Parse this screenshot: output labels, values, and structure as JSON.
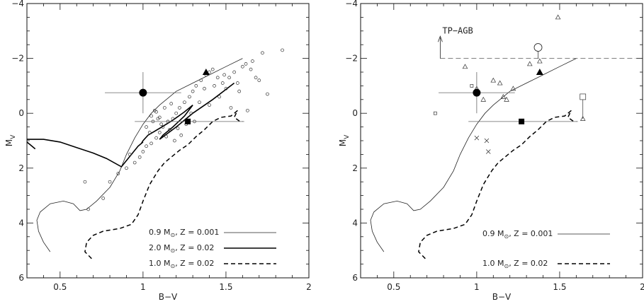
{
  "chart_data": [
    {
      "type": "scatter",
      "xlabel": "B−V",
      "ylabel": "M",
      "ylabel_sub": "V",
      "xlim": [
        0.3,
        2.0
      ],
      "ylim": [
        6,
        -4
      ],
      "xticks": [
        0.5,
        1,
        1.5,
        2
      ],
      "xtick_labels": [
        "0.5",
        "1",
        "1.5",
        "2"
      ],
      "yticks": [
        -4,
        -2,
        0,
        2,
        4,
        6
      ],
      "ytick_labels": [
        "−4",
        "−2",
        "0",
        "2",
        "4",
        "6"
      ],
      "grid": false,
      "legend_position": "bottom-right",
      "legend": [
        {
          "pre": "0.9 M",
          "sub": "⊙",
          "post": ", Z = 0.001",
          "style": "thin"
        },
        {
          "pre": "2.0 M",
          "sub": "⊙",
          "post": ", Z = 0.02",
          "style": "thick"
        },
        {
          "pre": "1.0 M",
          "sub": "⊙",
          "post": ", Z = 0.02",
          "style": "dashed"
        }
      ],
      "track_thin": [
        [
          0.44,
          5.05
        ],
        [
          0.4,
          4.7
        ],
        [
          0.37,
          4.3
        ],
        [
          0.36,
          3.9
        ],
        [
          0.38,
          3.6
        ],
        [
          0.44,
          3.3
        ],
        [
          0.52,
          3.2
        ],
        [
          0.58,
          3.3
        ],
        [
          0.62,
          3.55
        ],
        [
          0.66,
          3.5
        ],
        [
          0.72,
          3.2
        ],
        [
          0.8,
          2.7
        ],
        [
          0.86,
          2.1
        ],
        [
          0.9,
          1.5
        ],
        [
          0.95,
          0.9
        ],
        [
          1.0,
          0.4
        ],
        [
          1.05,
          0.0
        ],
        [
          1.1,
          -0.3
        ],
        [
          1.15,
          -0.55
        ],
        [
          1.2,
          -0.8
        ],
        [
          1.3,
          -1.1
        ],
        [
          1.4,
          -1.4
        ],
        [
          1.5,
          -1.7
        ],
        [
          1.6,
          -2.0
        ]
      ],
      "track_thick": [
        [
          0.3,
          0.95
        ],
        [
          0.4,
          0.95
        ],
        [
          0.5,
          1.05
        ],
        [
          0.6,
          1.25
        ],
        [
          0.7,
          1.45
        ],
        [
          0.78,
          1.65
        ],
        [
          0.87,
          1.95
        ],
        [
          0.91,
          1.65
        ],
        [
          0.97,
          1.2
        ],
        [
          1.0,
          1.05
        ],
        [
          0.99,
          1.1
        ],
        [
          1.0,
          1.0
        ],
        [
          1.03,
          0.8
        ],
        [
          1.1,
          0.55
        ],
        [
          1.18,
          0.25
        ],
        [
          1.25,
          -0.05
        ],
        [
          1.3,
          -0.3
        ],
        [
          1.25,
          0.1
        ],
        [
          1.18,
          0.5
        ],
        [
          1.12,
          0.8
        ],
        [
          1.1,
          0.95
        ],
        [
          1.2,
          0.5
        ],
        [
          1.3,
          0.0
        ],
        [
          1.42,
          -0.5
        ],
        [
          1.55,
          -1.1
        ]
      ],
      "track_hook": [
        [
          0.3,
          1.05
        ],
        [
          0.32,
          1.15
        ],
        [
          0.35,
          1.3
        ]
      ],
      "track_dashed": [
        [
          0.69,
          5.3
        ],
        [
          0.65,
          5.05
        ],
        [
          0.66,
          4.7
        ],
        [
          0.7,
          4.45
        ],
        [
          0.76,
          4.3
        ],
        [
          0.86,
          4.2
        ],
        [
          0.93,
          4.05
        ],
        [
          0.97,
          3.7
        ],
        [
          1.0,
          3.2
        ],
        [
          1.04,
          2.6
        ],
        [
          1.09,
          2.1
        ],
        [
          1.13,
          1.8
        ],
        [
          1.17,
          1.6
        ],
        [
          1.22,
          1.35
        ],
        [
          1.27,
          1.15
        ],
        [
          1.32,
          0.85
        ],
        [
          1.37,
          0.6
        ],
        [
          1.42,
          0.3
        ],
        [
          1.47,
          0.15
        ],
        [
          1.53,
          0.1
        ],
        [
          1.56,
          -0.05
        ],
        [
          1.57,
          -0.1
        ],
        [
          1.55,
          0.15
        ],
        [
          1.58,
          0.28
        ],
        [
          1.6,
          0.3
        ]
      ],
      "points_small_circles": [
        [
          0.65,
          2.5
        ],
        [
          0.67,
          3.5
        ],
        [
          0.76,
          3.1
        ],
        [
          0.8,
          2.5
        ],
        [
          0.85,
          2.2
        ],
        [
          0.9,
          2.0
        ],
        [
          0.92,
          1.5
        ],
        [
          0.95,
          1.8
        ],
        [
          0.98,
          1.6
        ],
        [
          1.0,
          1.4
        ],
        [
          1.02,
          1.2
        ],
        [
          1.05,
          1.1
        ],
        [
          1.08,
          0.9
        ],
        [
          1.1,
          0.7
        ],
        [
          1.12,
          0.5
        ],
        [
          1.15,
          0.3
        ],
        [
          1.18,
          0.2
        ],
        [
          1.2,
          0.0
        ],
        [
          1.22,
          -0.2
        ],
        [
          1.25,
          -0.4
        ],
        [
          1.28,
          -0.6
        ],
        [
          1.3,
          -0.8
        ],
        [
          1.32,
          -1.0
        ],
        [
          1.35,
          -1.2
        ],
        [
          1.38,
          -1.4
        ],
        [
          1.4,
          -1.5
        ],
        [
          1.42,
          -1.6
        ],
        [
          1.45,
          -1.3
        ],
        [
          1.48,
          -1.1
        ],
        [
          1.5,
          -0.9
        ],
        [
          1.52,
          -1.3
        ],
        [
          1.55,
          -1.5
        ],
        [
          1.58,
          -0.8
        ],
        [
          1.6,
          -1.7
        ],
        [
          1.62,
          -1.8
        ],
        [
          1.65,
          -1.6
        ],
        [
          1.68,
          -1.3
        ],
        [
          1.72,
          -2.2
        ],
        [
          1.75,
          -0.7
        ],
        [
          1.84,
          -2.3
        ],
        [
          1.05,
          0.1
        ],
        [
          1.07,
          -0.1
        ],
        [
          1.09,
          0.2
        ],
        [
          1.11,
          0.4
        ],
        [
          1.13,
          -0.2
        ],
        [
          1.16,
          0.6
        ],
        [
          1.19,
          1.0
        ],
        [
          1.23,
          0.8
        ],
        [
          1.26,
          0.4
        ],
        [
          1.29,
          0.0
        ],
        [
          1.31,
          0.3
        ],
        [
          1.34,
          -0.4
        ],
        [
          1.37,
          -0.9
        ],
        [
          1.4,
          -0.3
        ],
        [
          1.43,
          -1.0
        ],
        [
          1.46,
          -0.6
        ],
        [
          1.49,
          -1.4
        ],
        [
          1.53,
          -0.2
        ],
        [
          1.57,
          -1.1
        ],
        [
          1.63,
          -0.1
        ],
        [
          1.66,
          -1.9
        ],
        [
          1.7,
          -1.2
        ],
        [
          1.02,
          0.5
        ],
        [
          1.04,
          0.7
        ],
        [
          1.06,
          0.3
        ],
        [
          1.08,
          -0.05
        ],
        [
          1.1,
          0.15
        ],
        [
          1.14,
          0.85
        ],
        [
          1.17,
          -0.35
        ],
        [
          1.21,
          0.55
        ]
      ],
      "big_circle": {
        "x": 1.0,
        "y": -0.75,
        "xerr": 0.23,
        "yerr": 0.75
      },
      "filled_triangle": {
        "x": 1.38,
        "y": -1.5
      },
      "filled_square": {
        "x": 1.27,
        "y": 0.3,
        "xerr_minus": 0.32,
        "xerr_plus": 0.34
      }
    },
    {
      "type": "scatter",
      "xlabel": "B−V",
      "ylabel": "M",
      "ylabel_sub": "V",
      "xlim": [
        0.3,
        2.0
      ],
      "ylim": [
        6,
        -4
      ],
      "xticks": [
        0.5,
        1,
        1.5,
        2
      ],
      "xtick_labels": [
        "0.5",
        "1",
        "1.5",
        "2"
      ],
      "yticks": [
        -4,
        -2,
        0,
        2,
        4,
        6
      ],
      "ytick_labels": [
        "−4",
        "−2",
        "0",
        "2",
        "4",
        "6"
      ],
      "grid": false,
      "legend_position": "bottom-right",
      "legend": [
        {
          "pre": "0.9 M",
          "sub": "⊙",
          "post": ", Z = 0.001",
          "style": "thin"
        },
        {
          "pre": "1.0 M",
          "sub": "⊙",
          "post": ", Z = 0.02",
          "style": "dashed"
        }
      ],
      "annotation": "TP−AGB",
      "tp_agb_level": -2.0,
      "tp_agb_arrow_x": 0.78,
      "track_thin": [
        [
          0.44,
          5.05
        ],
        [
          0.4,
          4.7
        ],
        [
          0.37,
          4.3
        ],
        [
          0.36,
          3.9
        ],
        [
          0.38,
          3.6
        ],
        [
          0.44,
          3.3
        ],
        [
          0.52,
          3.2
        ],
        [
          0.58,
          3.3
        ],
        [
          0.62,
          3.55
        ],
        [
          0.66,
          3.5
        ],
        [
          0.72,
          3.2
        ],
        [
          0.8,
          2.7
        ],
        [
          0.86,
          2.1
        ],
        [
          0.9,
          1.5
        ],
        [
          0.95,
          0.9
        ],
        [
          1.0,
          0.4
        ],
        [
          1.05,
          0.0
        ],
        [
          1.1,
          -0.3
        ],
        [
          1.15,
          -0.55
        ],
        [
          1.2,
          -0.8
        ],
        [
          1.3,
          -1.1
        ],
        [
          1.4,
          -1.4
        ],
        [
          1.5,
          -1.7
        ],
        [
          1.6,
          -2.0
        ]
      ],
      "track_dashed": [
        [
          0.69,
          5.3
        ],
        [
          0.65,
          5.05
        ],
        [
          0.66,
          4.7
        ],
        [
          0.7,
          4.45
        ],
        [
          0.76,
          4.3
        ],
        [
          0.86,
          4.2
        ],
        [
          0.93,
          4.05
        ],
        [
          0.97,
          3.7
        ],
        [
          1.0,
          3.2
        ],
        [
          1.04,
          2.6
        ],
        [
          1.09,
          2.1
        ],
        [
          1.13,
          1.8
        ],
        [
          1.17,
          1.6
        ],
        [
          1.22,
          1.35
        ],
        [
          1.27,
          1.15
        ],
        [
          1.32,
          0.85
        ],
        [
          1.37,
          0.6
        ],
        [
          1.42,
          0.3
        ],
        [
          1.47,
          0.15
        ],
        [
          1.53,
          0.1
        ],
        [
          1.56,
          -0.05
        ],
        [
          1.57,
          -0.1
        ],
        [
          1.55,
          0.15
        ],
        [
          1.58,
          0.28
        ],
        [
          1.6,
          0.3
        ]
      ],
      "points_open_triangles": [
        [
          0.93,
          -1.7
        ],
        [
          1.0,
          -0.9
        ],
        [
          1.04,
          -0.5
        ],
        [
          1.1,
          -1.2
        ],
        [
          1.14,
          -1.1
        ],
        [
          1.16,
          -0.6
        ],
        [
          1.18,
          -0.5
        ],
        [
          1.22,
          -0.9
        ],
        [
          1.32,
          -1.8
        ],
        [
          1.38,
          -1.9
        ],
        [
          1.49,
          -3.5
        ],
        [
          1.64,
          0.2
        ]
      ],
      "points_open_squares": [
        [
          0.75,
          0.0
        ],
        [
          0.97,
          -1.0
        ],
        [
          1.64,
          -0.6
        ]
      ],
      "points_crosses": [
        [
          1.0,
          0.9
        ],
        [
          1.06,
          1.0
        ],
        [
          1.07,
          1.4
        ]
      ],
      "big_open_circle": {
        "x": 1.37,
        "y": -2.4,
        "yerr_plus": 0.4
      },
      "big_circle": {
        "x": 1.0,
        "y": -0.75,
        "xerr": 0.23,
        "yerr": 0.75
      },
      "filled_triangle": {
        "x": 1.38,
        "y": -1.5
      },
      "filled_square": {
        "x": 1.27,
        "y": 0.3,
        "xerr_minus": 0.32,
        "xerr_plus": 0.34
      },
      "square_errorbar": {
        "x": 1.64,
        "y1": -0.6,
        "y2": 0.2
      }
    }
  ]
}
